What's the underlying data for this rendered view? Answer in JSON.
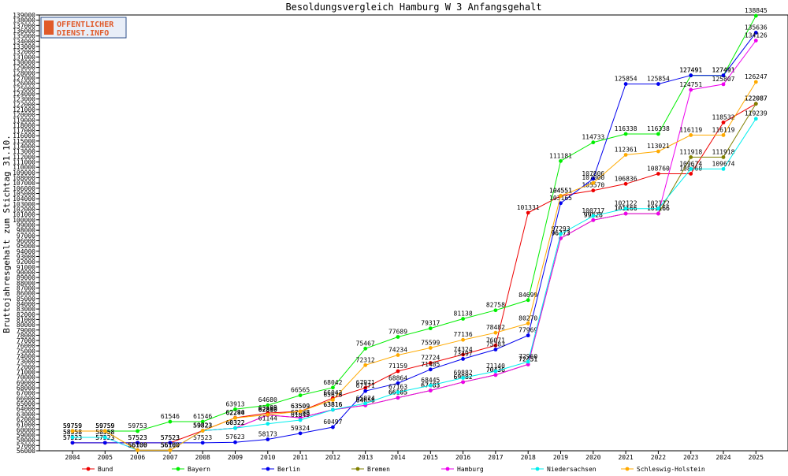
{
  "logo": {
    "line1": "OFFENTLICHER",
    "line2": "DIENST.INFO"
  },
  "chart_data": {
    "type": "line",
    "title": "Besoldungsvergleich Hamburg W 3 Anfangsgehalt",
    "xlabel": "",
    "ylabel": "Bruttojahresgehalt zum Stichtag 31.10.",
    "ylim": [
      56000,
      139000
    ],
    "ytick_step": 1000,
    "grid": false,
    "legend_position": "bottom",
    "categories": [
      "2004",
      "2005",
      "2006",
      "2007",
      "2008",
      "2009",
      "2010",
      "2011",
      "2012",
      "2013",
      "2014",
      "2015",
      "2016",
      "2017",
      "2018",
      "2019",
      "2020",
      "2021",
      "2022",
      "2023",
      "2024",
      "2025"
    ],
    "series": [
      {
        "name": "Bund",
        "color": "#ee0000",
        "values": [
          57523,
          57523,
          57523,
          57523,
          59823,
          62290,
          63189,
          63509,
          66042,
          67971,
          71159,
          72724,
          74324,
          76071,
          101331,
          104551,
          105570,
          106836,
          108760,
          108760,
          118532,
          122087
        ]
      },
      {
        "name": "Bayern",
        "color": "#00ee00",
        "values": [
          59759,
          59759,
          59753,
          61546,
          61546,
          63913,
          64680,
          66565,
          68042,
          75467,
          77689,
          79317,
          81138,
          82758,
          84699,
          111181,
          114733,
          116338,
          116338,
          127491,
          127491,
          138845
        ]
      },
      {
        "name": "Berlin",
        "color": "#0000ee",
        "values": [
          57523,
          57523,
          57523,
          57523,
          57523,
          57623,
          58173,
          59324,
          60497,
          67371,
          68864,
          71485,
          73497,
          75283,
          77969,
          103165,
          107806,
          125854,
          125854,
          127491,
          127491,
          135636
        ]
      },
      {
        "name": "Bremen",
        "color": "#808000",
        "values": [
          59759,
          59759,
          56100,
          56100,
          59823,
          60322,
          62810,
          62288,
          63816,
          64658,
          66105,
          67483,
          69082,
          70436,
          72451,
          96473,
          99928,
          101166,
          101166,
          111918,
          111918,
          122087
        ]
      },
      {
        "name": "Hamburg",
        "color": "#ee00ee",
        "values": [
          58558,
          58558,
          56100,
          56100,
          59823,
          60322,
          62810,
          62288,
          63816,
          64658,
          66105,
          67483,
          69082,
          70436,
          72451,
          96473,
          99928,
          101166,
          101166,
          124751,
          125807,
          134126
        ]
      },
      {
        "name": "Niedersachsen",
        "color": "#00eeee",
        "values": [
          58558,
          58558,
          56100,
          56100,
          59823,
          60322,
          61144,
          61849,
          63816,
          65024,
          67163,
          68445,
          69882,
          71140,
          72960,
          97293,
          100717,
          102122,
          102122,
          109674,
          109674,
          119239
        ]
      },
      {
        "name": "Schleswig-Holstein",
        "color": "#ffaa00",
        "values": [
          59759,
          59759,
          56100,
          56100,
          59823,
          62244,
          62880,
          63509,
          65678,
          72312,
          74234,
          75599,
          77136,
          78482,
          80270,
          104551,
          107000,
          112361,
          113021,
          116119,
          116119,
          126247
        ]
      }
    ]
  }
}
